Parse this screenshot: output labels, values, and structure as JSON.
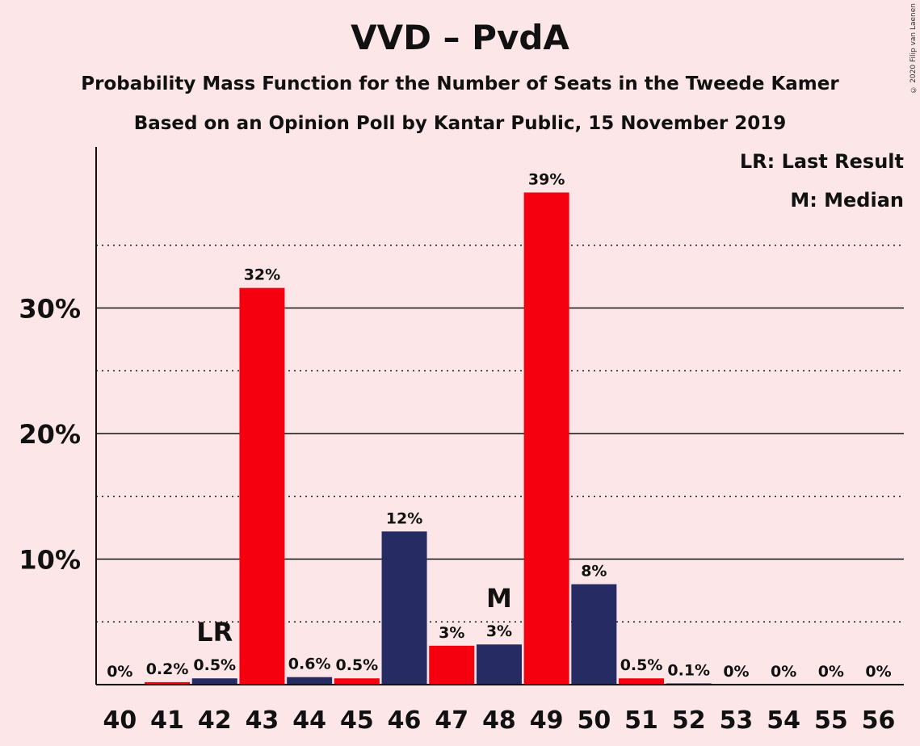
{
  "title": "VVD – PvdA",
  "subtitle_1": "Probability Mass Function for the Number of Seats in the Tweede Kamer",
  "subtitle_2": "Based on an Opinion Poll by Kantar Public, 15 November 2019",
  "legend": {
    "last_result": "LR: Last Result",
    "median": "M: Median"
  },
  "copyright": "© 2020 Filip van Laenen",
  "colors": {
    "background": "#fce6e7",
    "red": "#f5000f",
    "navy": "#262b63"
  },
  "chart_data": {
    "type": "bar",
    "categories": [
      "40",
      "41",
      "42",
      "43",
      "44",
      "45",
      "46",
      "47",
      "48",
      "49",
      "50",
      "51",
      "52",
      "53",
      "54",
      "55",
      "56"
    ],
    "values": [
      0,
      0.2,
      0.5,
      31.6,
      0.6,
      0.5,
      12.2,
      3.1,
      3.2,
      39.2,
      8.0,
      0.5,
      0.1,
      0,
      0,
      0,
      0
    ],
    "data_labels": [
      "0%",
      "0.2%",
      "0.5%",
      "32%",
      "0.6%",
      "0.5%",
      "12%",
      "3%",
      "3%",
      "39%",
      "8%",
      "0.5%",
      "0.1%",
      "0%",
      "0%",
      "0%",
      "0%"
    ],
    "bar_colors": [
      "red",
      "red",
      "navy",
      "red",
      "navy",
      "red",
      "navy",
      "red",
      "navy",
      "red",
      "navy",
      "red",
      "navy",
      "red",
      "navy",
      "red",
      "navy"
    ],
    "ylim": [
      0,
      42
    ],
    "ytick_values": [
      10,
      20,
      30
    ],
    "ytick_labels": [
      "10%",
      "20%",
      "30%"
    ],
    "minor_grid_values": [
      5,
      15,
      25,
      35
    ],
    "markers": [
      {
        "category": "42",
        "text": "LR"
      },
      {
        "category": "48",
        "text": "M"
      }
    ],
    "xlabel": "",
    "ylabel": "",
    "grid": true,
    "legend_position": "top-right"
  }
}
